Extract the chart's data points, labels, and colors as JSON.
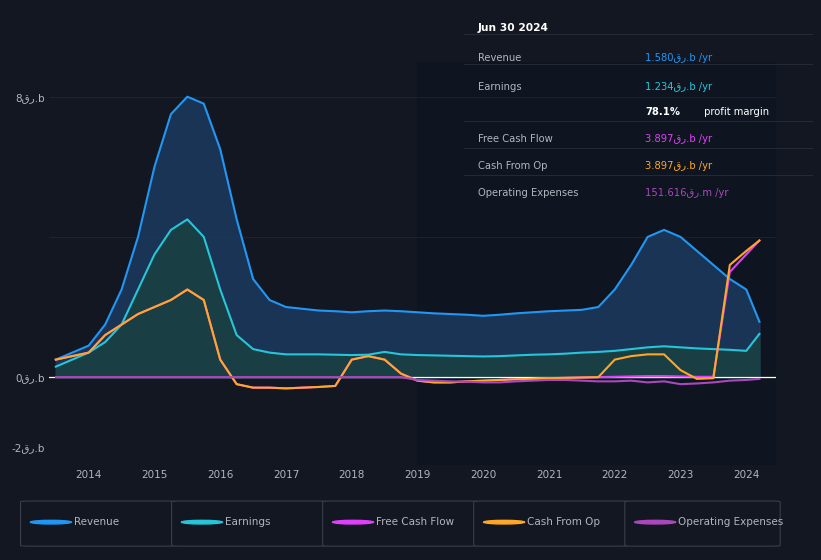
{
  "bg_color": "#131722",
  "plot_bg_color": "#131722",
  "grid_color": "#363a45",
  "text_color": "#b2b5be",
  "rev_color": "#2196f3",
  "earn_color": "#26c6da",
  "fcf_color": "#e040fb",
  "cash_color": "#ffa726",
  "op_color": "#ab47bc",
  "rev_fill": "#1a3a5c",
  "earn_fill": "#1a4a4a",
  "ytick_labels": [
    "-2قر.b",
    "0قر.b",
    "8قر.b"
  ],
  "ytick_vals": [
    -2,
    0,
    8
  ],
  "xtick_vals": [
    2014,
    2015,
    2016,
    2017,
    2018,
    2019,
    2020,
    2021,
    2022,
    2023,
    2024
  ],
  "years": [
    2013.5,
    2013.75,
    2014.0,
    2014.25,
    2014.5,
    2014.75,
    2015.0,
    2015.25,
    2015.5,
    2015.75,
    2016.0,
    2016.25,
    2016.5,
    2016.75,
    2017.0,
    2017.25,
    2017.5,
    2017.75,
    2018.0,
    2018.25,
    2018.5,
    2018.75,
    2019.0,
    2019.25,
    2019.5,
    2019.75,
    2020.0,
    2020.25,
    2020.5,
    2020.75,
    2021.0,
    2021.25,
    2021.5,
    2021.75,
    2022.0,
    2022.25,
    2022.5,
    2022.75,
    2023.0,
    2023.25,
    2023.5,
    2023.75,
    2024.0,
    2024.2
  ],
  "rev": [
    0.5,
    0.7,
    0.9,
    1.5,
    2.5,
    4.0,
    6.0,
    7.5,
    8.0,
    7.8,
    6.5,
    4.5,
    2.8,
    2.2,
    2.0,
    1.95,
    1.9,
    1.88,
    1.85,
    1.88,
    1.9,
    1.88,
    1.85,
    1.82,
    1.8,
    1.78,
    1.75,
    1.78,
    1.82,
    1.85,
    1.88,
    1.9,
    1.92,
    2.0,
    2.5,
    3.2,
    4.0,
    4.2,
    4.0,
    3.6,
    3.2,
    2.8,
    2.5,
    1.58
  ],
  "earn": [
    0.3,
    0.5,
    0.7,
    1.0,
    1.5,
    2.5,
    3.5,
    4.2,
    4.5,
    4.0,
    2.5,
    1.2,
    0.8,
    0.7,
    0.65,
    0.65,
    0.65,
    0.64,
    0.63,
    0.64,
    0.72,
    0.65,
    0.63,
    0.62,
    0.61,
    0.6,
    0.59,
    0.6,
    0.62,
    0.64,
    0.65,
    0.67,
    0.7,
    0.72,
    0.75,
    0.8,
    0.85,
    0.88,
    0.85,
    0.82,
    0.8,
    0.78,
    0.75,
    1.234
  ],
  "fcf": [
    0.5,
    0.6,
    0.7,
    1.2,
    1.5,
    1.8,
    2.0,
    2.2,
    2.5,
    2.2,
    0.5,
    -0.2,
    -0.3,
    -0.3,
    -0.32,
    -0.3,
    -0.28,
    -0.25,
    0.5,
    0.6,
    0.5,
    0.1,
    -0.1,
    -0.15,
    -0.15,
    -0.12,
    -0.1,
    -0.08,
    -0.06,
    -0.05,
    -0.03,
    -0.02,
    -0.01,
    0.0,
    0.01,
    0.02,
    0.03,
    0.03,
    0.02,
    0.01,
    0.01,
    3.0,
    3.5,
    3.897
  ],
  "cash": [
    0.5,
    0.6,
    0.7,
    1.2,
    1.5,
    1.8,
    2.0,
    2.2,
    2.5,
    2.2,
    0.5,
    -0.2,
    -0.3,
    -0.3,
    -0.32,
    -0.3,
    -0.28,
    -0.25,
    0.5,
    0.6,
    0.5,
    0.1,
    -0.1,
    -0.15,
    -0.15,
    -0.12,
    -0.1,
    -0.08,
    -0.06,
    -0.05,
    -0.03,
    -0.02,
    -0.01,
    0.0,
    0.5,
    0.6,
    0.65,
    0.65,
    0.2,
    -0.05,
    -0.03,
    3.2,
    3.6,
    3.897
  ],
  "op": [
    0.0,
    0.0,
    0.0,
    0.0,
    0.0,
    0.0,
    0.0,
    0.0,
    0.0,
    0.0,
    0.0,
    0.0,
    0.0,
    0.0,
    0.0,
    0.0,
    0.0,
    0.0,
    0.0,
    0.0,
    0.0,
    0.0,
    -0.08,
    -0.1,
    -0.12,
    -0.13,
    -0.15,
    -0.15,
    -0.12,
    -0.1,
    -0.08,
    -0.08,
    -0.1,
    -0.12,
    -0.12,
    -0.1,
    -0.15,
    -0.12,
    -0.2,
    -0.18,
    -0.15,
    -0.1,
    -0.08,
    -0.05
  ],
  "legend_items": [
    {
      "label": "Revenue",
      "color": "#2196f3"
    },
    {
      "label": "Earnings",
      "color": "#26c6da"
    },
    {
      "label": "Free Cash Flow",
      "color": "#e040fb"
    },
    {
      "label": "Cash From Op",
      "color": "#ffa726"
    },
    {
      "label": "Operating Expenses",
      "color": "#ab47bc"
    }
  ]
}
